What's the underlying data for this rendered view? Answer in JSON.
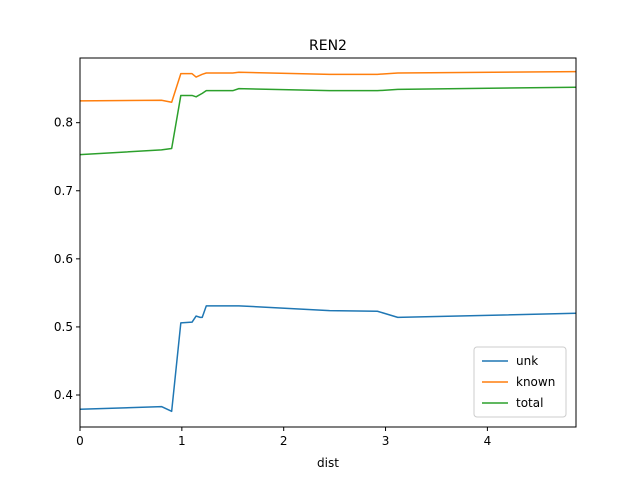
{
  "chart_data": {
    "type": "line",
    "title": "REN2",
    "xlabel": "dist",
    "ylabel": "",
    "xlim": [
      0,
      4.87
    ],
    "ylim": [
      0.353,
      0.895
    ],
    "xticks": [
      0,
      1,
      2,
      3,
      4
    ],
    "yticks": [
      0.4,
      0.5,
      0.6,
      0.7,
      0.8
    ],
    "xtick_labels": [
      "0",
      "1",
      "2",
      "3",
      "4"
    ],
    "ytick_labels": [
      "0.4",
      "0.5",
      "0.6",
      "0.7",
      "0.8"
    ],
    "grid": false,
    "legend_position": "lower-right",
    "series": [
      {
        "name": "unk",
        "color": "#1f77b4",
        "x": [
          0,
          0.8,
          0.9,
          0.99,
          1.1,
          1.14,
          1.18,
          1.2,
          1.24,
          1.5,
          1.56,
          2.45,
          2.92,
          3.12,
          4.87
        ],
        "y": [
          0.379,
          0.383,
          0.376,
          0.506,
          0.507,
          0.516,
          0.514,
          0.514,
          0.531,
          0.531,
          0.531,
          0.524,
          0.523,
          0.514,
          0.52
        ]
      },
      {
        "name": "known",
        "color": "#ff7f0e",
        "x": [
          0,
          0.8,
          0.9,
          0.99,
          1.1,
          1.14,
          1.2,
          1.24,
          1.5,
          1.56,
          2.45,
          2.92,
          3.12,
          4.87
        ],
        "y": [
          0.832,
          0.833,
          0.83,
          0.872,
          0.872,
          0.867,
          0.871,
          0.873,
          0.873,
          0.874,
          0.871,
          0.871,
          0.873,
          0.875
        ]
      },
      {
        "name": "total",
        "color": "#2ca02c",
        "x": [
          0,
          0.8,
          0.9,
          0.99,
          1.1,
          1.14,
          1.2,
          1.24,
          1.5,
          1.56,
          2.45,
          2.92,
          3.12,
          4.87
        ],
        "y": [
          0.753,
          0.76,
          0.762,
          0.84,
          0.84,
          0.838,
          0.843,
          0.847,
          0.847,
          0.85,
          0.847,
          0.847,
          0.849,
          0.852
        ]
      }
    ]
  }
}
